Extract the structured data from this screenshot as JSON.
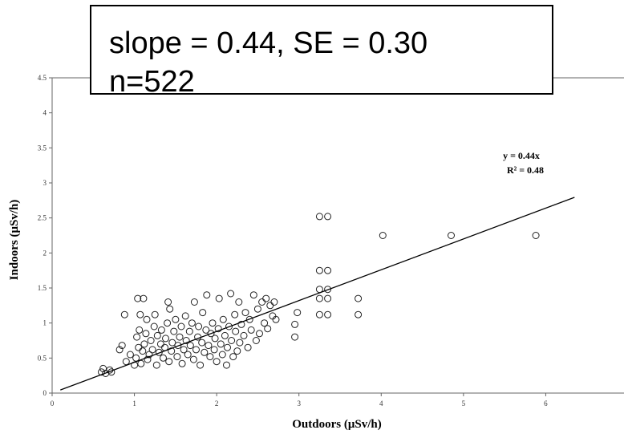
{
  "stat_box": {
    "line1": "slope = 0.44, SE = 0.30",
    "line2": "n=522"
  },
  "chart_data": {
    "type": "scatter",
    "title": "",
    "xlabel": "Outdoors (μSv/h)",
    "ylabel": "Indoors (μSv/h)",
    "xlim": [
      0,
      7
    ],
    "ylim": [
      0,
      4.5
    ],
    "x_ticks": [
      "0",
      "1",
      "2",
      "3",
      "4",
      "5",
      "6"
    ],
    "y_ticks": [
      "0",
      "0.5",
      "1",
      "1.5",
      "2",
      "2.5",
      "3",
      "3.5",
      "4",
      "4.5"
    ],
    "grid": false,
    "fit": {
      "equation": "y = 0.44x",
      "r2": "R² = 0.48",
      "slope": 0.44,
      "x_range": [
        0.1,
        6.35
      ]
    },
    "series": [
      {
        "points": [
          [
            0.6,
            0.3
          ],
          [
            0.62,
            0.35
          ],
          [
            0.65,
            0.28
          ],
          [
            0.7,
            0.33
          ],
          [
            0.72,
            0.3
          ],
          [
            0.82,
            0.62
          ],
          [
            0.85,
            0.68
          ],
          [
            0.88,
            1.12
          ],
          [
            0.9,
            0.45
          ],
          [
            0.95,
            0.55
          ],
          [
            1.0,
            0.4
          ],
          [
            1.02,
            0.5
          ],
          [
            1.03,
            0.8
          ],
          [
            1.04,
            1.35
          ],
          [
            1.05,
            0.65
          ],
          [
            1.06,
            0.9
          ],
          [
            1.07,
            1.12
          ],
          [
            1.08,
            0.42
          ],
          [
            1.1,
            0.6
          ],
          [
            1.11,
            1.35
          ],
          [
            1.12,
            0.7
          ],
          [
            1.14,
            0.85
          ],
          [
            1.15,
            1.05
          ],
          [
            1.16,
            0.48
          ],
          [
            1.18,
            0.55
          ],
          [
            1.2,
            0.75
          ],
          [
            1.22,
            0.62
          ],
          [
            1.24,
            0.95
          ],
          [
            1.25,
            1.12
          ],
          [
            1.27,
            0.4
          ],
          [
            1.28,
            0.82
          ],
          [
            1.3,
            0.58
          ],
          [
            1.32,
            0.7
          ],
          [
            1.33,
            0.9
          ],
          [
            1.35,
            0.5
          ],
          [
            1.37,
            0.65
          ],
          [
            1.38,
            0.78
          ],
          [
            1.4,
            1.0
          ],
          [
            1.41,
            1.3
          ],
          [
            1.42,
            0.45
          ],
          [
            1.43,
            1.2
          ],
          [
            1.45,
            0.6
          ],
          [
            1.46,
            0.72
          ],
          [
            1.48,
            0.88
          ],
          [
            1.5,
            1.05
          ],
          [
            1.52,
            0.52
          ],
          [
            1.53,
            0.68
          ],
          [
            1.55,
            0.8
          ],
          [
            1.57,
            0.95
          ],
          [
            1.58,
            0.42
          ],
          [
            1.6,
            0.62
          ],
          [
            1.62,
            1.1
          ],
          [
            1.63,
            0.75
          ],
          [
            1.65,
            0.55
          ],
          [
            1.67,
            0.88
          ],
          [
            1.68,
            0.68
          ],
          [
            1.7,
            1.0
          ],
          [
            1.72,
            0.48
          ],
          [
            1.73,
            1.3
          ],
          [
            1.75,
            0.62
          ],
          [
            1.77,
            0.8
          ],
          [
            1.78,
            0.95
          ],
          [
            1.8,
            0.4
          ],
          [
            1.82,
            0.72
          ],
          [
            1.83,
            1.15
          ],
          [
            1.85,
            0.58
          ],
          [
            1.87,
            0.9
          ],
          [
            1.88,
            1.4
          ],
          [
            1.9,
            0.68
          ],
          [
            1.92,
            0.52
          ],
          [
            1.93,
            0.85
          ],
          [
            1.95,
            1.0
          ],
          [
            1.97,
            0.62
          ],
          [
            1.98,
            0.78
          ],
          [
            2.0,
            0.45
          ],
          [
            2.02,
            0.92
          ],
          [
            2.03,
            1.35
          ],
          [
            2.05,
            0.7
          ],
          [
            2.07,
            0.55
          ],
          [
            2.08,
            1.05
          ],
          [
            2.1,
            0.82
          ],
          [
            2.12,
            0.4
          ],
          [
            2.13,
            0.65
          ],
          [
            2.15,
            0.95
          ],
          [
            2.17,
            1.42
          ],
          [
            2.18,
            0.75
          ],
          [
            2.2,
            0.52
          ],
          [
            2.22,
            1.12
          ],
          [
            2.23,
            0.88
          ],
          [
            2.25,
            0.6
          ],
          [
            2.27,
            1.3
          ],
          [
            2.28,
            0.72
          ],
          [
            2.3,
            0.98
          ],
          [
            2.33,
            0.82
          ],
          [
            2.35,
            1.15
          ],
          [
            2.38,
            0.65
          ],
          [
            2.4,
            1.05
          ],
          [
            2.42,
            0.9
          ],
          [
            2.45,
            1.4
          ],
          [
            2.48,
            0.75
          ],
          [
            2.5,
            1.2
          ],
          [
            2.52,
            0.85
          ],
          [
            2.55,
            1.3
          ],
          [
            2.58,
            1.0
          ],
          [
            2.6,
            1.35
          ],
          [
            2.62,
            0.92
          ],
          [
            2.65,
            1.25
          ],
          [
            2.68,
            1.1
          ],
          [
            2.7,
            1.3
          ],
          [
            2.72,
            1.05
          ],
          [
            2.95,
            0.8
          ],
          [
            2.95,
            0.98
          ],
          [
            2.98,
            1.15
          ],
          [
            3.25,
            2.52
          ],
          [
            3.25,
            1.75
          ],
          [
            3.25,
            1.48
          ],
          [
            3.25,
            1.35
          ],
          [
            3.25,
            1.12
          ],
          [
            3.35,
            2.52
          ],
          [
            3.35,
            1.75
          ],
          [
            3.35,
            1.48
          ],
          [
            3.35,
            1.35
          ],
          [
            3.35,
            1.12
          ],
          [
            3.72,
            1.35
          ],
          [
            3.72,
            1.12
          ],
          [
            4.02,
            2.25
          ],
          [
            4.85,
            2.25
          ],
          [
            5.88,
            2.25
          ]
        ]
      }
    ]
  }
}
